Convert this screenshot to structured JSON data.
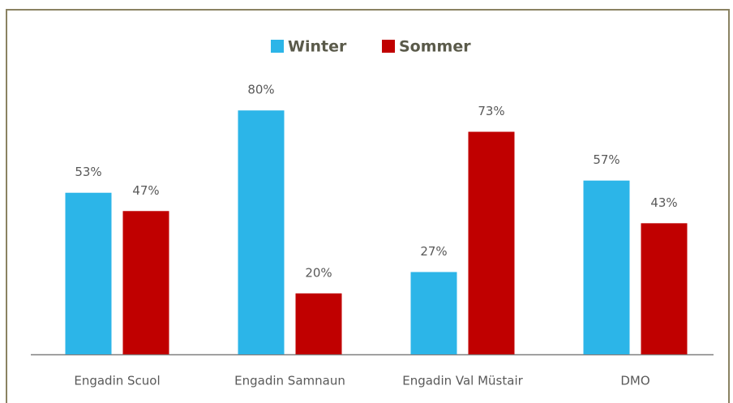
{
  "chart_data": {
    "type": "bar",
    "categories": [
      "Engadin Scuol",
      "Engadin Samnaun",
      "Engadin Val Müstair",
      "DMO"
    ],
    "series": [
      {
        "name": "Winter",
        "color": "#2cb5e8",
        "values": [
          53,
          80,
          27,
          57
        ],
        "value_labels": [
          "53%",
          "80%",
          "27%",
          "57%"
        ]
      },
      {
        "name": "Sommer",
        "color": "#c00000",
        "values": [
          47,
          20,
          73,
          43
        ],
        "value_labels": [
          "47%",
          "20%",
          "73%",
          "43%"
        ]
      }
    ],
    "legend": "top"
  }
}
